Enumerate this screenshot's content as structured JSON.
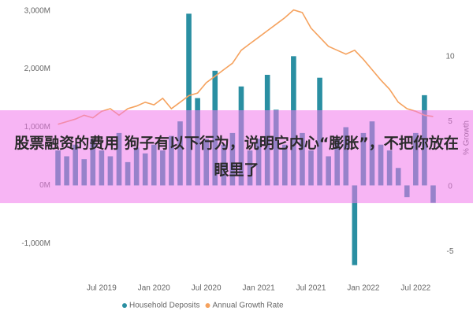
{
  "chart_data": {
    "type": "bar",
    "categories": [
      null,
      null,
      null,
      null,
      null,
      "Jul 2019",
      null,
      null,
      null,
      null,
      null,
      "Jan 2020",
      null,
      null,
      null,
      null,
      null,
      "Jul 2020",
      null,
      null,
      null,
      null,
      null,
      "Jan 2021",
      null,
      null,
      null,
      null,
      null,
      "Jul 2021",
      null,
      null,
      null,
      null,
      null,
      "Jan 2022",
      null,
      null,
      null,
      null,
      null,
      "Jul 2022",
      null,
      null
    ],
    "series": [
      {
        "name": "Household Deposits",
        "type": "bar",
        "color": "#2a8fa2",
        "values": [
          600,
          500,
          700,
          450,
          800,
          600,
          500,
          900,
          400,
          650,
          550,
          700,
          600,
          850,
          1100,
          2950,
          1500,
          800,
          1970,
          700,
          900,
          1700,
          600,
          800,
          1900,
          1300,
          700,
          2220,
          900,
          600,
          1850,
          500,
          800,
          1000,
          -1370,
          900,
          1100,
          700,
          600,
          300,
          -200,
          900,
          1550,
          -300
        ]
      },
      {
        "name": "Annual Growth Rate",
        "type": "line",
        "axis": "y2",
        "color": "#f5a25e",
        "values": [
          4.8,
          5,
          5.2,
          5.5,
          5.3,
          5.8,
          6,
          5.5,
          6,
          6.2,
          6.5,
          6.3,
          6.8,
          6,
          6.5,
          7,
          7.2,
          8,
          8.5,
          9,
          9.5,
          10.5,
          11,
          11.5,
          12,
          12.5,
          13,
          13.6,
          13.4,
          12.2,
          11.5,
          10.8,
          10.5,
          10.2,
          10.5,
          9.8,
          9,
          8.2,
          7.5,
          6.5,
          6,
          5.8,
          5.5,
          5.4
        ]
      }
    ],
    "ylim": [
      -1550,
      3050
    ],
    "yticks": [
      {
        "value": 3000,
        "label": "3,000M"
      },
      {
        "value": 2000,
        "label": "2,000M"
      },
      {
        "value": 1000,
        "label": "1,000M"
      },
      {
        "value": 0,
        "label": "0M"
      },
      {
        "value": -1000,
        "label": "-1,000M"
      }
    ],
    "y2lim": [
      -6.85,
      13.76
    ],
    "y2ticks": [
      10,
      5,
      0,
      -5
    ],
    "y2_label": "% Growth",
    "legend": "bottom"
  },
  "overlay_text": "股票融资的费用 狗子有以下行为，说明它内心“膨胀”，不把你放在眼里了"
}
